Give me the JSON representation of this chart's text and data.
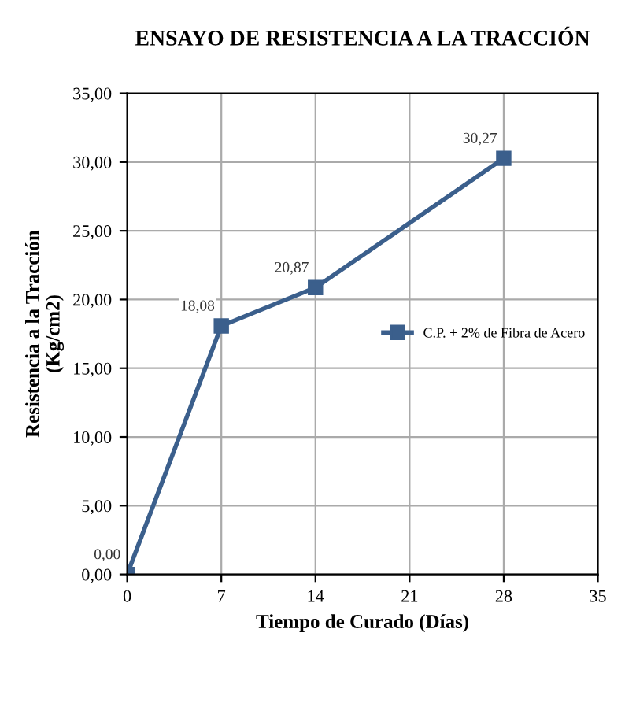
{
  "chart_data": {
    "type": "line",
    "title": "ENSAYO DE RESISTENCIA A LA TRACCIÓN",
    "xlabel": "Tiempo de Curado (Días)",
    "ylabel": "Resistencia a la Tracción\n(Kg/cm2)",
    "x": [
      0,
      7,
      14,
      28
    ],
    "series": [
      {
        "name": "C.P. + 2% de Fibra de Acero",
        "color": "#3b5f8c",
        "values": [
          0.0,
          18.08,
          20.87,
          30.27
        ],
        "value_labels": [
          "0,00",
          "18,08",
          "20,87",
          "30,27"
        ]
      }
    ],
    "xlim": [
      0,
      35
    ],
    "xticks": [
      0,
      7,
      14,
      21,
      28,
      35
    ],
    "ylim": [
      0,
      35
    ],
    "yticks": [
      {
        "value": 0,
        "label": "0,00"
      },
      {
        "value": 5,
        "label": "5,00"
      },
      {
        "value": 10,
        "label": "10,00"
      },
      {
        "value": 15,
        "label": "15,00"
      },
      {
        "value": 20,
        "label": "20,00"
      },
      {
        "value": 25,
        "label": "25,00"
      },
      {
        "value": 30,
        "label": "30,00"
      },
      {
        "value": 35,
        "label": "35,00"
      }
    ],
    "grid": true,
    "legend": "right",
    "marker": "square",
    "line_style": "solid"
  }
}
